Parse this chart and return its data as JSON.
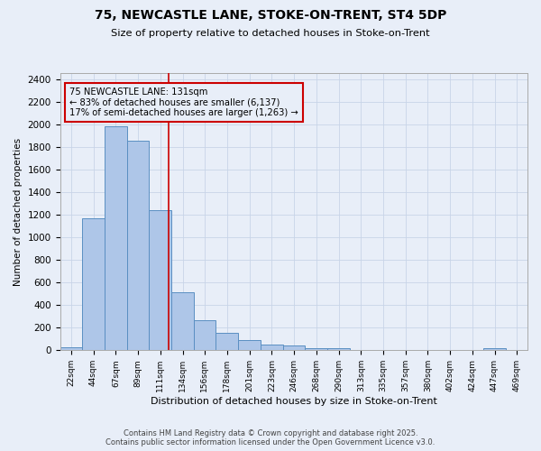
{
  "title_line1": "75, NEWCASTLE LANE, STOKE-ON-TRENT, ST4 5DP",
  "title_line2": "Size of property relative to detached houses in Stoke-on-Trent",
  "xlabel": "Distribution of detached houses by size in Stoke-on-Trent",
  "ylabel": "Number of detached properties",
  "bins": [
    "22sqm",
    "44sqm",
    "67sqm",
    "89sqm",
    "111sqm",
    "134sqm",
    "156sqm",
    "178sqm",
    "201sqm",
    "223sqm",
    "246sqm",
    "268sqm",
    "290sqm",
    "313sqm",
    "335sqm",
    "357sqm",
    "380sqm",
    "402sqm",
    "424sqm",
    "447sqm",
    "469sqm"
  ],
  "bin_edges": [
    22,
    44,
    67,
    89,
    111,
    134,
    156,
    178,
    201,
    223,
    246,
    268,
    290,
    313,
    335,
    357,
    380,
    402,
    424,
    447,
    469
  ],
  "values": [
    28,
    1170,
    1980,
    1855,
    1240,
    515,
    270,
    155,
    90,
    48,
    42,
    22,
    15,
    0,
    0,
    0,
    0,
    0,
    0,
    20,
    0
  ],
  "bar_color": "#aec6e8",
  "bar_edgecolor": "#5a8fc2",
  "property_size": 131,
  "red_line_color": "#cc0000",
  "annotation_line1": "75 NEWCASTLE LANE: 131sqm",
  "annotation_line2": "← 83% of detached houses are smaller (6,137)",
  "annotation_line3": "17% of semi-detached houses are larger (1,263) →",
  "annotation_box_edgecolor": "#cc0000",
  "ylim": [
    0,
    2450
  ],
  "yticks": [
    0,
    200,
    400,
    600,
    800,
    1000,
    1200,
    1400,
    1600,
    1800,
    2000,
    2200,
    2400
  ],
  "grid_color": "#c8d4e8",
  "bg_color": "#e8eef8",
  "footer_line1": "Contains HM Land Registry data © Crown copyright and database right 2025.",
  "footer_line2": "Contains public sector information licensed under the Open Government Licence v3.0."
}
